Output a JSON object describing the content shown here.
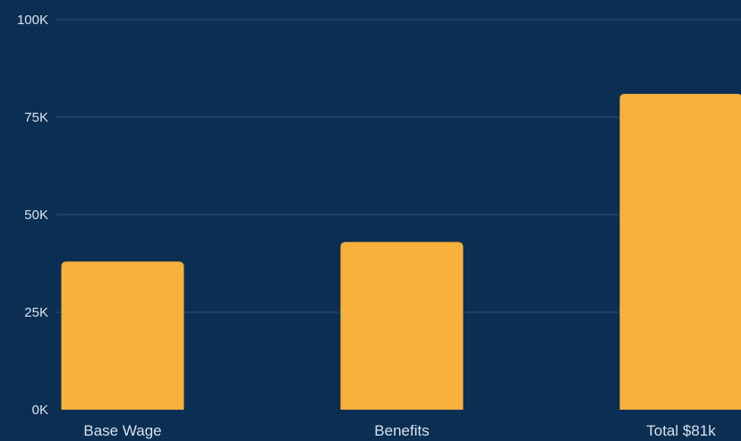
{
  "chart_data": {
    "type": "bar",
    "categories": [
      "Base Wage",
      "Benefits",
      "Total $81k"
    ],
    "values": [
      38000,
      43000,
      81000
    ],
    "yticks": [
      0,
      25000,
      50000,
      75000,
      100000
    ],
    "ytick_labels": [
      "0K",
      "25K",
      "50K",
      "75K",
      "100K"
    ],
    "ylim": [
      0,
      100000
    ],
    "grid": true,
    "colors": {
      "background": "#0b2e53",
      "bar": "#f8b13c",
      "grid": "#2d5277",
      "text": "#d7e1ec"
    }
  }
}
